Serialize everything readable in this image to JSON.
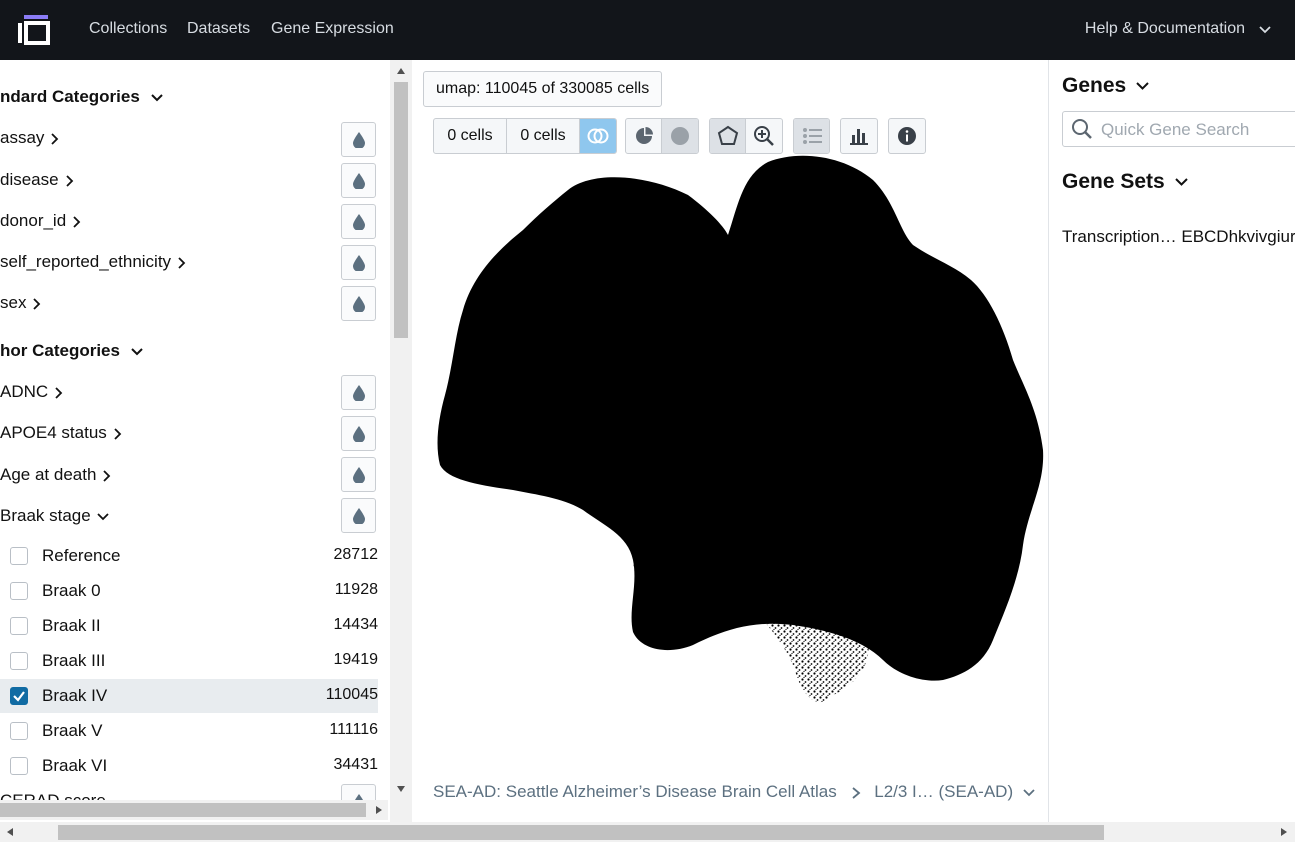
{
  "topbar": {
    "nav": [
      "Collections",
      "Datasets",
      "Gene Expression"
    ],
    "help": "Help & Documentation"
  },
  "left_panel": {
    "standard_heading": "ndard Categories",
    "standard_items": [
      "assay",
      "disease",
      "donor_id",
      "self_reported_ethnicity",
      "sex"
    ],
    "author_heading": "hor Categories",
    "author_items": [
      "ADNC",
      "APOE4 status",
      "Age at death"
    ],
    "expanded_item": "Braak stage",
    "values": [
      {
        "label": "Reference",
        "count": "28712",
        "checked": false
      },
      {
        "label": "Braak 0",
        "count": "11928",
        "checked": false
      },
      {
        "label": "Braak II",
        "count": "14434",
        "checked": false
      },
      {
        "label": "Braak III",
        "count": "19419",
        "checked": false
      },
      {
        "label": "Braak IV",
        "count": "110045",
        "checked": true
      },
      {
        "label": "Braak V",
        "count": "111116",
        "checked": false
      },
      {
        "label": "Braak VI",
        "count": "34431",
        "checked": false
      }
    ],
    "next_item": "CERAD score"
  },
  "center": {
    "umap_label": "umap: 110045 of 330085 cells",
    "cells_a": "0 cells",
    "cells_b": "0 cells",
    "breadcrumb_dataset": "SEA-AD: Seattle Alzheimer’s Disease Brain Cell Atlas",
    "breadcrumb_sub": "L2/3 I… (SEA-AD)"
  },
  "right_panel": {
    "genes_heading": "Genes",
    "search_placeholder": "Quick Gene Search",
    "gene_sets_heading": "Gene Sets",
    "gene_set_item": "Transcription… EBCDhkvivgiur"
  },
  "colors": {
    "topbar": "#12151a",
    "accent_blue": "#106ba3",
    "drop_icon": "#5c7080"
  }
}
